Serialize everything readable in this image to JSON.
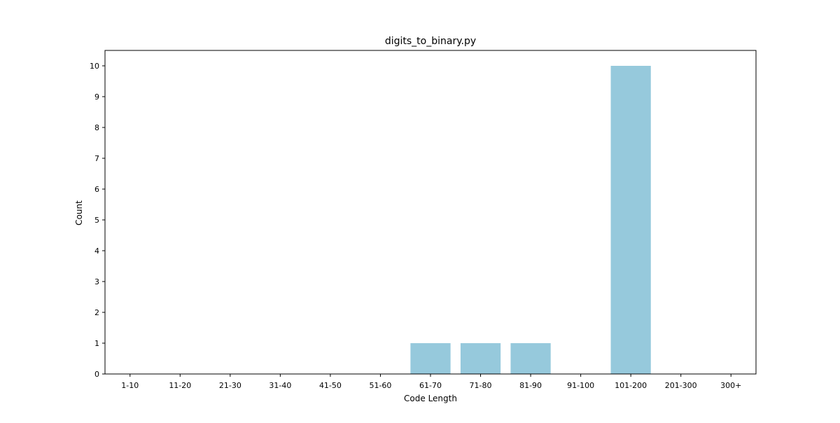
{
  "chart_data": {
    "type": "bar",
    "title": "digits_to_binary.py",
    "xlabel": "Code Length",
    "ylabel": "Count",
    "categories": [
      "1-10",
      "11-20",
      "21-30",
      "31-40",
      "41-50",
      "51-60",
      "61-70",
      "71-80",
      "81-90",
      "91-100",
      "101-200",
      "201-300",
      "300+"
    ],
    "values": [
      0,
      0,
      0,
      0,
      0,
      0,
      1,
      1,
      1,
      0,
      10,
      0,
      0
    ],
    "ylim": [
      0,
      10.5
    ],
    "yticks": [
      0,
      1,
      2,
      3,
      4,
      5,
      6,
      7,
      8,
      9,
      10
    ],
    "bar_color": "#96c9dc",
    "grid": false,
    "legend": "none"
  }
}
